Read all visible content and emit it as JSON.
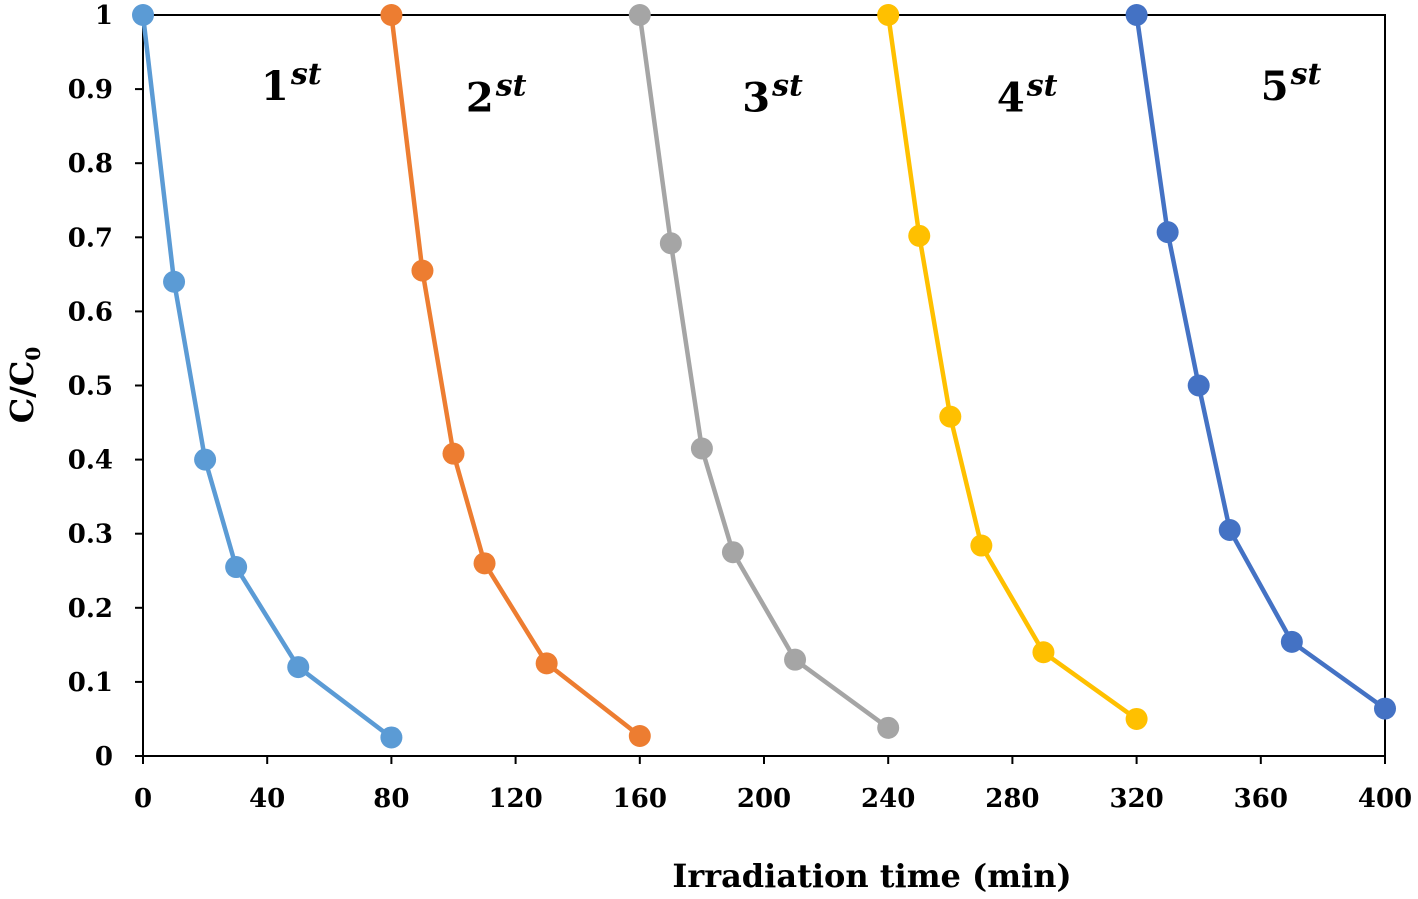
{
  "chart_data": {
    "type": "line",
    "title": "",
    "xlabel": "Irradiation  time (min)",
    "ylabel_main": "C/C",
    "ylabel_sub": "0",
    "xlim": [
      0,
      400
    ],
    "ylim": [
      0,
      1
    ],
    "xticks": [
      0,
      40,
      80,
      120,
      160,
      200,
      240,
      280,
      320,
      360,
      400
    ],
    "yticks": [
      0,
      0.1,
      0.2,
      0.3,
      0.4,
      0.5,
      0.6,
      0.7,
      0.8,
      0.9,
      1
    ],
    "grid": false,
    "legend": "none",
    "series": [
      {
        "color": "#5b9bd5",
        "points": [
          [
            0,
            1.0
          ],
          [
            10,
            0.64
          ],
          [
            20,
            0.4
          ],
          [
            30,
            0.255
          ],
          [
            50,
            0.12
          ],
          [
            80,
            0.025
          ]
        ]
      },
      {
        "color": "#ed7d31",
        "points": [
          [
            80,
            1.0
          ],
          [
            90,
            0.655
          ],
          [
            100,
            0.408
          ],
          [
            110,
            0.26
          ],
          [
            130,
            0.125
          ],
          [
            160,
            0.027
          ]
        ]
      },
      {
        "color": "#a5a5a5",
        "points": [
          [
            160,
            1.0
          ],
          [
            170,
            0.692
          ],
          [
            180,
            0.415
          ],
          [
            190,
            0.275
          ],
          [
            210,
            0.13
          ],
          [
            240,
            0.038
          ]
        ]
      },
      {
        "color": "#ffc000",
        "points": [
          [
            240,
            1.0
          ],
          [
            250,
            0.702
          ],
          [
            260,
            0.458
          ],
          [
            270,
            0.284
          ],
          [
            290,
            0.14
          ],
          [
            320,
            0.05
          ]
        ]
      },
      {
        "color": "#4472c4",
        "points": [
          [
            320,
            1.0
          ],
          [
            330,
            0.707
          ],
          [
            340,
            0.5
          ],
          [
            350,
            0.305
          ],
          [
            370,
            0.154
          ],
          [
            400,
            0.064
          ]
        ]
      }
    ],
    "annotations": [
      {
        "num": "1",
        "sup": "st",
        "x": 38,
        "y": 0.885
      },
      {
        "num": "2",
        "sup": "st",
        "x": 104,
        "y": 0.87
      },
      {
        "num": "3",
        "sup": "st",
        "x": 193,
        "y": 0.87
      },
      {
        "num": "4",
        "sup": "st",
        "x": 275,
        "y": 0.87
      },
      {
        "num": "5",
        "sup": "st",
        "x": 360,
        "y": 0.885
      }
    ]
  }
}
